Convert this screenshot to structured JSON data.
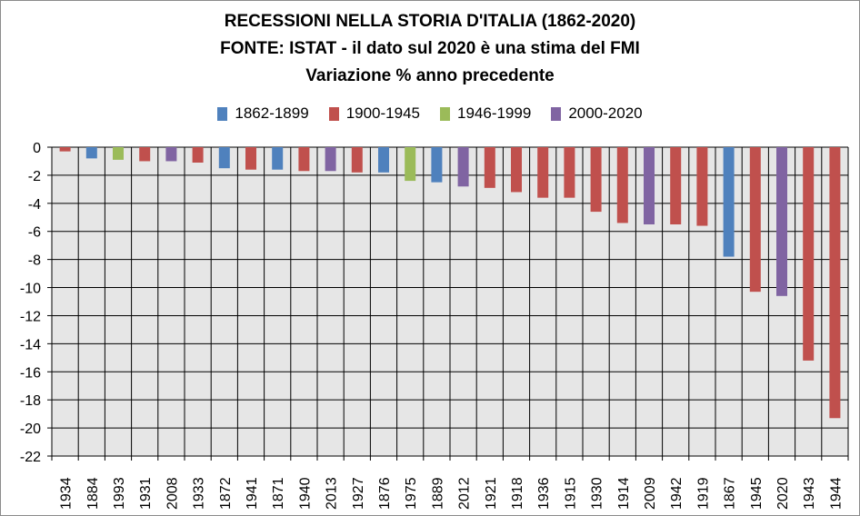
{
  "title_lines": [
    "RECESSIONI NELLA STORIA D'ITALIA (1862-2020)",
    "FONTE: ISTAT - il dato sul 2020 è una stima del FMI",
    "Variazione % anno precedente"
  ],
  "legend": [
    {
      "label": "1862-1899",
      "color": "#4f81bd"
    },
    {
      "label": "1900-1945",
      "color": "#c0504d"
    },
    {
      "label": "1946-1999",
      "color": "#9bbb59"
    },
    {
      "label": "2000-2020",
      "color": "#8064a2"
    }
  ],
  "chart_data": {
    "type": "bar",
    "title": "RECESSIONI NELLA STORIA D'ITALIA (1862-2020)",
    "subtitle": "FONTE: ISTAT - il dato sul 2020 è una stima del FMI / Variazione % anno precedente",
    "xlabel": "",
    "ylabel": "",
    "ylim": [
      -22,
      0
    ],
    "yticks": [
      0,
      -2,
      -4,
      -6,
      -8,
      -10,
      -12,
      -14,
      -16,
      -18,
      -20,
      -22
    ],
    "grid": true,
    "legend_position": "top",
    "plot_background": "#e6e6e6",
    "categories": [
      "1934",
      "1884",
      "1993",
      "1931",
      "2008",
      "1933",
      "1872",
      "1941",
      "1871",
      "1940",
      "2013",
      "1927",
      "1876",
      "1975",
      "1889",
      "2012",
      "1921",
      "1918",
      "1936",
      "1915",
      "1930",
      "1914",
      "2009",
      "1942",
      "1919",
      "1867",
      "1945",
      "2020",
      "1943",
      "1944"
    ],
    "values": [
      -0.3,
      -0.8,
      -0.9,
      -1.0,
      -1.0,
      -1.1,
      -1.5,
      -1.6,
      -1.6,
      -1.7,
      -1.7,
      -1.8,
      -1.8,
      -2.4,
      -2.5,
      -2.8,
      -2.9,
      -3.2,
      -3.6,
      -3.6,
      -4.6,
      -5.4,
      -5.5,
      -5.5,
      -5.6,
      -7.8,
      -10.3,
      -10.6,
      -15.2,
      -19.3
    ],
    "series_group": [
      1,
      0,
      2,
      1,
      3,
      1,
      0,
      1,
      0,
      1,
      3,
      1,
      0,
      2,
      0,
      3,
      1,
      1,
      1,
      1,
      1,
      1,
      3,
      1,
      1,
      0,
      1,
      3,
      1,
      1
    ]
  }
}
